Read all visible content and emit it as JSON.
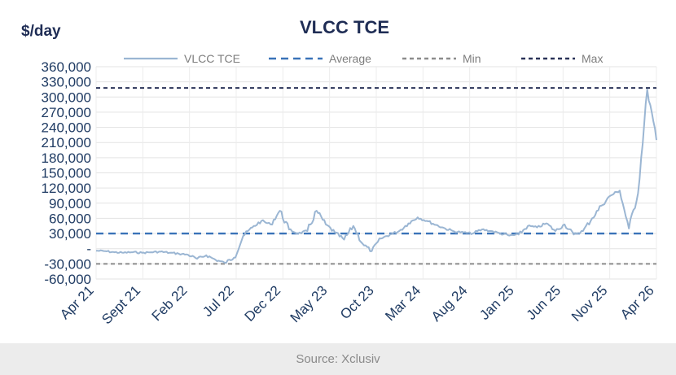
{
  "chart_data": {
    "type": "line",
    "title": "VLCC TCE",
    "ylabel": "$/day",
    "xlabel": "",
    "ylim": [
      -60000,
      360000
    ],
    "yticks": [
      {
        "value": 360000,
        "label": "360,000"
      },
      {
        "value": 330000,
        "label": "330,000"
      },
      {
        "value": 300000,
        "label": "300,000"
      },
      {
        "value": 270000,
        "label": "270,000"
      },
      {
        "value": 240000,
        "label": "240,000"
      },
      {
        "value": 210000,
        "label": "210,000"
      },
      {
        "value": 180000,
        "label": "180,000"
      },
      {
        "value": 150000,
        "label": "150,000"
      },
      {
        "value": 120000,
        "label": "120,000"
      },
      {
        "value": 90000,
        "label": "90,000"
      },
      {
        "value": 60000,
        "label": "60,000"
      },
      {
        "value": 30000,
        "label": "30,000"
      },
      {
        "value": 0,
        "label": "-"
      },
      {
        "value": -30000,
        "label": "-30,000"
      },
      {
        "value": -60000,
        "label": "-60,000"
      }
    ],
    "xticks": [
      "Apr 21",
      "Sept 21",
      "Feb 22",
      "Jul 22",
      "Dec 22",
      "May 23",
      "Oct 23",
      "Mar 24",
      "Aug 24",
      "Jan 25",
      "Jun 25",
      "Nov 25",
      "Apr 26"
    ],
    "x_range": [
      "Apr 21",
      "Apr 26"
    ],
    "grid": true,
    "legend_position": "top",
    "legend": [
      {
        "name": "VLCC TCE",
        "style": "solid",
        "color": "#9bb6d3"
      },
      {
        "name": "Average",
        "style": "dashed",
        "color": "#3a73b8"
      },
      {
        "name": "Min",
        "style": "dashed",
        "color": "#8c8c8c"
      },
      {
        "name": "Max",
        "style": "dashed",
        "color": "#2a3358"
      }
    ],
    "series": [
      {
        "name": "VLCC TCE",
        "color": "#9bb6d3",
        "points": [
          [
            "Apr 21",
            -4000
          ],
          [
            "May 21",
            -5000
          ],
          [
            "Jun 21",
            -7000
          ],
          [
            "Jul 21",
            -8000
          ],
          [
            "Aug 21",
            -7000
          ],
          [
            "Sept 21",
            -8000
          ],
          [
            "Oct 21",
            -7000
          ],
          [
            "Nov 21",
            -6000
          ],
          [
            "Dec 21",
            -8000
          ],
          [
            "Jan 22",
            -10000
          ],
          [
            "Feb 22",
            -12000
          ],
          [
            "Mar 22",
            -20000
          ],
          [
            "Apr 22",
            -13000
          ],
          [
            "May 22",
            -22000
          ],
          [
            "Jun 22",
            -28000
          ],
          [
            "Jul 22",
            -18000
          ],
          [
            "Aug 22",
            25000
          ],
          [
            "Sep 22",
            42000
          ],
          [
            "Oct 22",
            55000
          ],
          [
            "Nov 22",
            48000
          ],
          [
            "Dec 22",
            75000
          ],
          [
            "Jan 23",
            38000
          ],
          [
            "Feb 23",
            30000
          ],
          [
            "Mar 23",
            35000
          ],
          [
            "Apr 23",
            75000
          ],
          [
            "May 23",
            48000
          ],
          [
            "Jun 23",
            32000
          ],
          [
            "Jul 23",
            18000
          ],
          [
            "Aug 23",
            45000
          ],
          [
            "Sep 23",
            10000
          ],
          [
            "Oct 23",
            -5000
          ],
          [
            "Nov 23",
            20000
          ],
          [
            "Dec 23",
            28000
          ],
          [
            "Jan 24",
            35000
          ],
          [
            "Feb 24",
            50000
          ],
          [
            "Mar 24",
            62000
          ],
          [
            "Apr 24",
            55000
          ],
          [
            "May 24",
            47000
          ],
          [
            "Jun 24",
            40000
          ],
          [
            "Jul 24",
            34000
          ],
          [
            "Aug 24",
            32000
          ],
          [
            "Sep 24",
            30000
          ],
          [
            "Oct 24",
            38000
          ],
          [
            "Nov 24",
            35000
          ],
          [
            "Dec 24",
            30000
          ],
          [
            "Jan 25",
            26000
          ],
          [
            "Feb 25",
            28000
          ],
          [
            "Mar 25",
            45000
          ],
          [
            "Apr 25",
            42000
          ],
          [
            "May 25",
            50000
          ],
          [
            "Jun 25",
            35000
          ],
          [
            "Jul 25",
            48000
          ],
          [
            "Aug 25",
            28000
          ],
          [
            "Sep 25",
            35000
          ],
          [
            "Oct 25",
            60000
          ],
          [
            "Nov 25",
            85000
          ],
          [
            "Dec 25",
            105000
          ],
          [
            "Jan 26",
            115000
          ],
          [
            "Feb 26",
            40000
          ],
          [
            "Mar 26",
            110000
          ],
          [
            "Mar 26b",
            315000
          ],
          [
            "Apr 26",
            215000
          ]
        ]
      }
    ],
    "reference_lines": [
      {
        "name": "Average",
        "value": 30000,
        "color": "#3a73b8"
      },
      {
        "name": "Min",
        "value": -30000,
        "color": "#8c8c8c"
      },
      {
        "name": "Max",
        "value": 318000,
        "color": "#2a3358"
      }
    ]
  },
  "caption": "Source: Xclusiv"
}
